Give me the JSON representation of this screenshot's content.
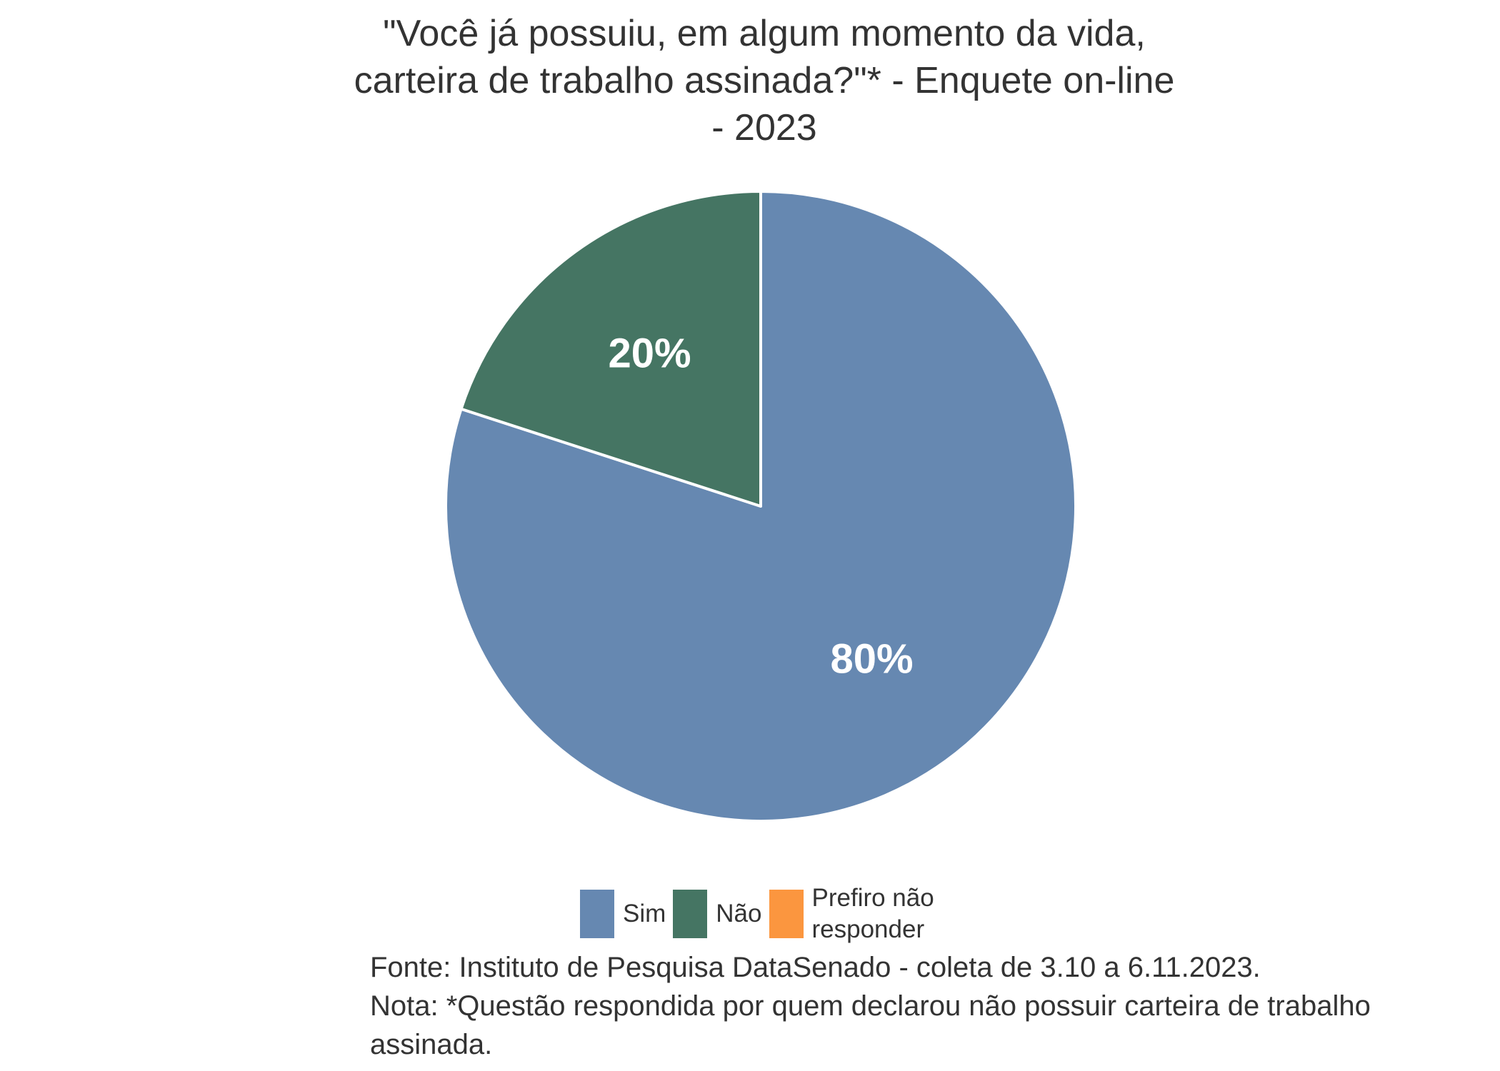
{
  "chart_data": {
    "type": "pie",
    "title_lines": [
      "\"Você já possuiu, em algum momento da vida,",
      "carteira de trabalho assinada?\"* - Enquete on-line",
      "- 2023"
    ],
    "slices": [
      {
        "name": "Sim",
        "value": 80,
        "label": "80%",
        "color": "#6688b1"
      },
      {
        "name": "Não",
        "value": 20,
        "label": "20%",
        "color": "#457563"
      },
      {
        "name": "Prefiro não responder",
        "value": 0,
        "label": "",
        "color": "#fb963f"
      }
    ],
    "start_angle_deg": 0,
    "direction": "clockwise",
    "legend_position": "bottom",
    "source": "Fonte: Instituto de Pesquisa DataSenado - coleta de 3.10 a 6.11.2023.",
    "note": "Nota: *Questão respondida por quem declarou não possuir carteira de trabalho assinada."
  }
}
